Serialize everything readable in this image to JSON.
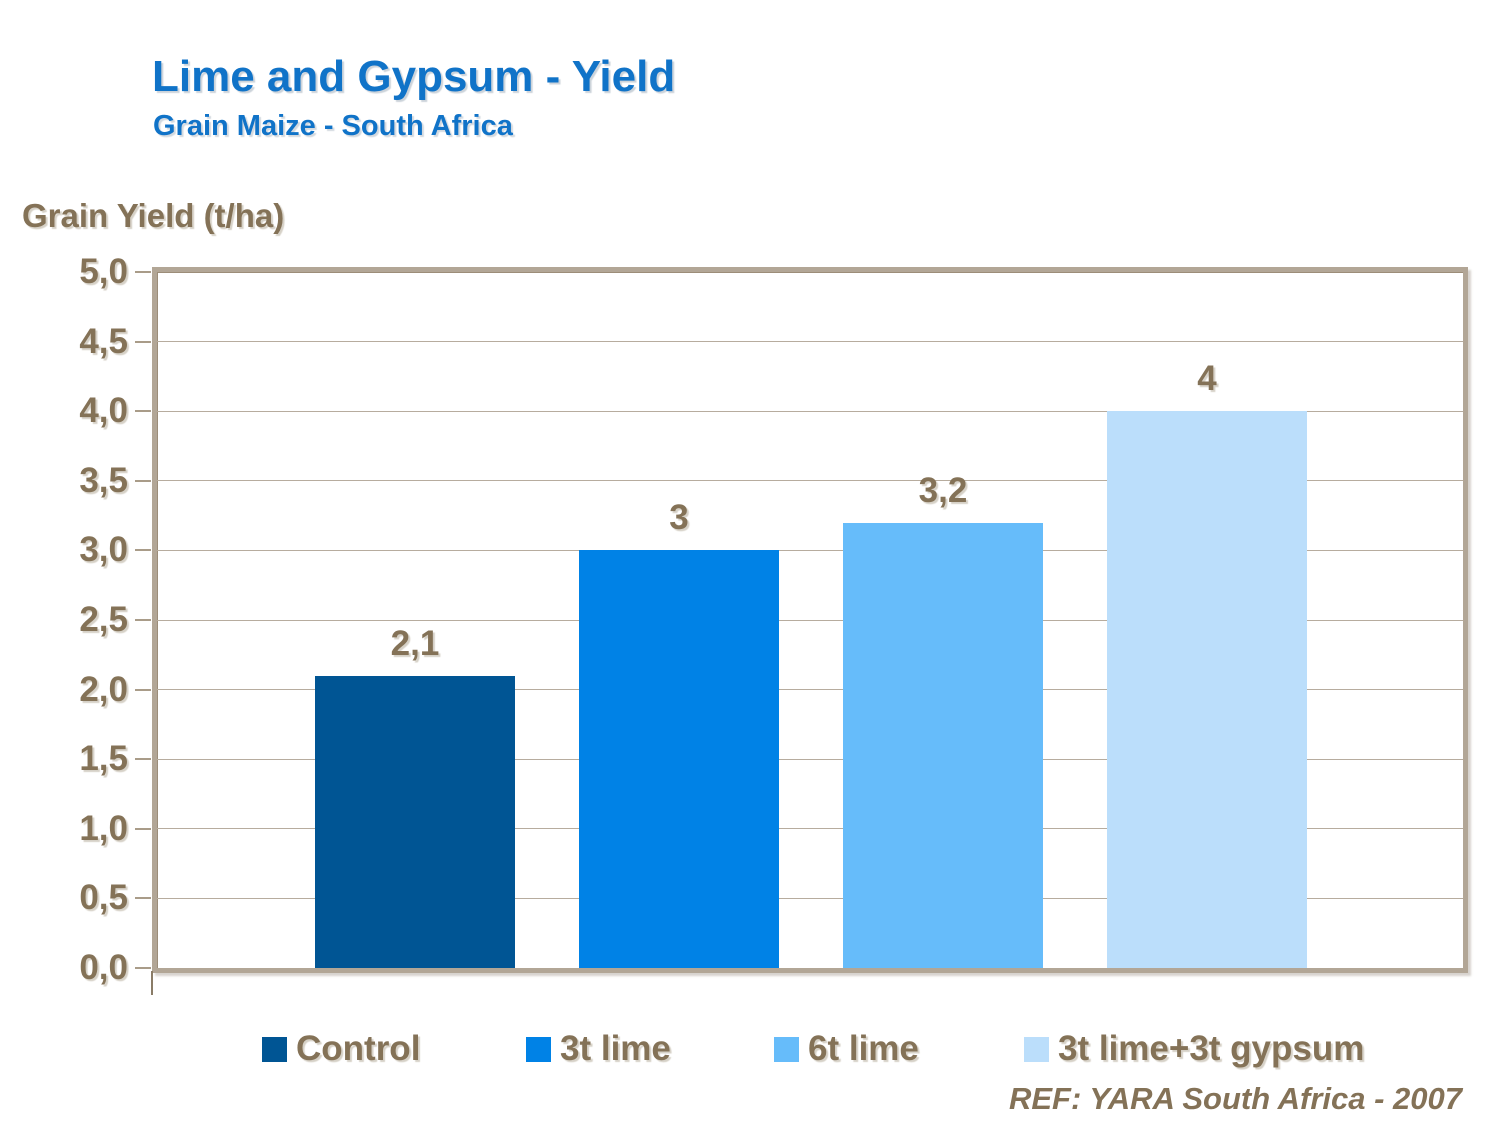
{
  "header": {
    "title": "Lime and Gypsum - Yield",
    "subtitle": "Grain Maize - South Africa"
  },
  "footer": {
    "ref": "REF: YARA South Africa - 2007"
  },
  "colors": {
    "title_blue": "#1073C8",
    "text_brown": "#847257",
    "plot_border_tan": "#B2A696",
    "gridline_tan": "#B7AC9E"
  },
  "chart_data": {
    "type": "bar",
    "title": "Lime and Gypsum - Yield",
    "subtitle": "Grain Maize - South Africa",
    "ylabel": "Grain Yield (t/ha)",
    "xlabel": "",
    "ylim": [
      0,
      5
    ],
    "ytick_interval": 0.5,
    "ytick_labels": [
      "5,0",
      "4,5",
      "4,0",
      "3,5",
      "3,0",
      "2,5",
      "2,0",
      "1,5",
      "1,0",
      "0,5",
      "0,0"
    ],
    "grid": true,
    "legend_position": "bottom",
    "decimal_separator": ",",
    "categories": [
      "Control",
      "3t lime",
      "6t lime",
      "3t lime+3t gypsum"
    ],
    "values": [
      2.1,
      3,
      3.2,
      4
    ],
    "value_labels": [
      "2,1",
      "3",
      "3,2",
      "4"
    ],
    "bar_colors": [
      "#005594",
      "#0082E6",
      "#66BCFA",
      "#BBDEFB"
    ]
  }
}
